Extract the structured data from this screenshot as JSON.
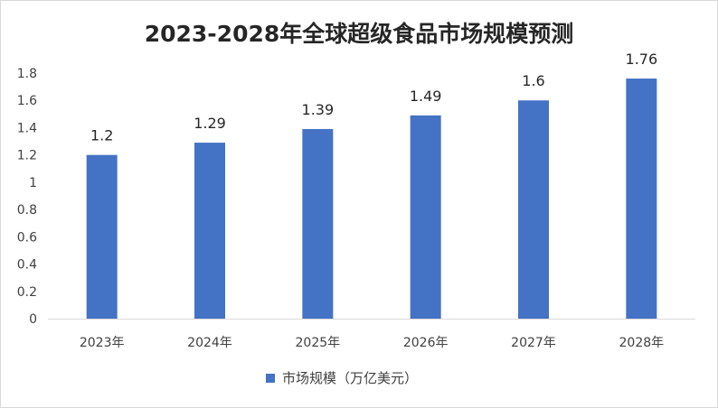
{
  "chart_data": {
    "type": "bar",
    "title": "2023-2028年全球超级食品市场规模预测",
    "categories": [
      "2023年",
      "2024年",
      "2025年",
      "2026年",
      "2027年",
      "2028年"
    ],
    "series": [
      {
        "name": "市场规模（万亿美元）",
        "values": [
          1.2,
          1.29,
          1.39,
          1.49,
          1.6,
          1.76
        ],
        "color": "#4472c4"
      }
    ],
    "data_labels": [
      "1.2",
      "1.29",
      "1.39",
      "1.49",
      "1.6",
      "1.76"
    ],
    "y_ticks": [
      "0",
      "0.2",
      "0.4",
      "0.6",
      "0.8",
      "1",
      "1.2",
      "1.4",
      "1.6",
      "1.8"
    ],
    "ylim": [
      0,
      1.8
    ],
    "grid": false,
    "legend_position": "bottom"
  }
}
